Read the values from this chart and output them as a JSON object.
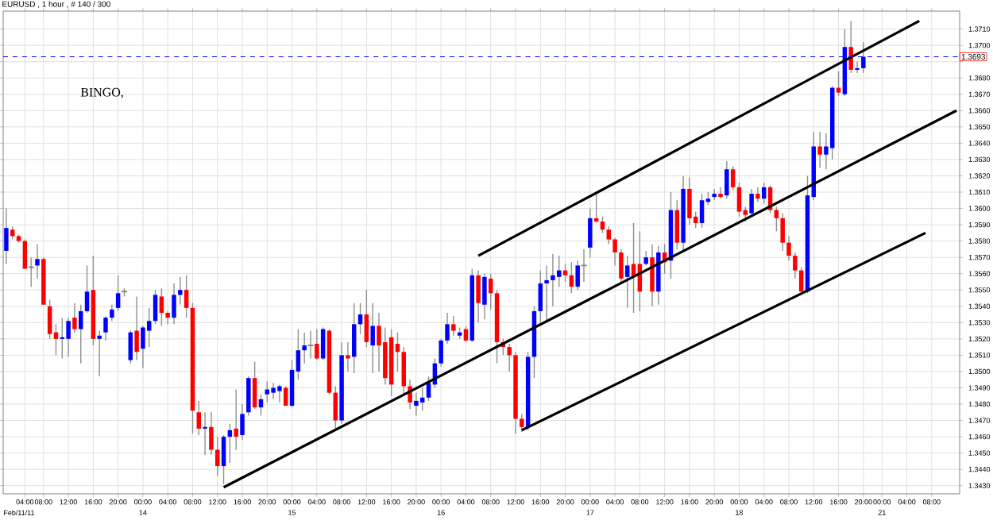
{
  "chart_data": {
    "type": "candlestick",
    "title": "EURUSD , 1 hour , # 140 / 300",
    "annotations": [
      "BINGO,",
      "Feb/11/11",
      "14",
      "15",
      "16",
      "17",
      "18",
      "21"
    ],
    "categories": [
      null,
      null,
      null,
      "04:00",
      null,
      null,
      "08:00",
      null,
      null,
      null,
      "12:00",
      null,
      null,
      null,
      "16:00",
      null,
      null,
      null,
      "20:00",
      null,
      null,
      null,
      "00:00",
      null,
      null,
      null,
      "04:00",
      null,
      null,
      null,
      "08:00",
      null,
      null,
      null,
      "12:00",
      null,
      null,
      null,
      "16:00",
      null,
      null,
      null,
      "20:00",
      null,
      null,
      null,
      "00:00",
      null,
      null,
      null,
      "04:00",
      null,
      null,
      null,
      "08:00",
      null,
      null,
      null,
      "12:00",
      null,
      null,
      null,
      "16:00",
      null,
      null,
      null,
      "20:00",
      null,
      null,
      null,
      "00:00",
      null,
      null,
      null,
      "04:00",
      null,
      null,
      null,
      "08:00",
      null,
      null,
      null,
      "12:00",
      null,
      null,
      null,
      "16:00",
      null,
      null,
      null,
      "20:00",
      null,
      null,
      null,
      "00:00",
      null,
      null,
      null,
      "04:00",
      null,
      null,
      null,
      "08:00",
      null,
      null,
      null,
      "12:00",
      null,
      null,
      null,
      "16:00",
      null,
      null,
      null,
      "20:00",
      null,
      null,
      null,
      "00:00",
      null,
      null,
      null,
      "04:00",
      null,
      null,
      null,
      "08:00",
      null,
      null,
      null,
      "12:00",
      null,
      null,
      null,
      "16:00",
      null,
      null,
      null,
      "20:00",
      null,
      null,
      "00:00",
      null,
      null,
      null,
      "04:00",
      null,
      null,
      null,
      "08:00",
      null,
      null,
      null,
      null
    ],
    "ohlc": [
      [
        1.3574,
        1.36,
        1.3566,
        1.3588
      ],
      [
        1.3587,
        1.3589,
        1.3581,
        1.3583
      ],
      [
        1.3583,
        1.3584,
        1.3579,
        1.358
      ],
      [
        1.358,
        1.3581,
        1.3563,
        1.3563
      ],
      [
        1.3564,
        1.357,
        1.3552,
        1.3564
      ],
      [
        1.3565,
        1.3578,
        1.3557,
        1.3569
      ],
      [
        1.3569,
        1.357,
        1.3541,
        1.3541
      ],
      [
        1.354,
        1.3544,
        1.352,
        1.3523
      ],
      [
        1.3524,
        1.3529,
        1.351,
        1.352
      ],
      [
        1.352,
        1.3533,
        1.3508,
        1.3521
      ],
      [
        1.352,
        1.3533,
        1.3509,
        1.3531
      ],
      [
        1.3533,
        1.3542,
        1.3524,
        1.3526
      ],
      [
        1.3526,
        1.3541,
        1.3505,
        1.3537
      ],
      [
        1.3537,
        1.3565,
        1.3536,
        1.3549
      ],
      [
        1.355,
        1.3571,
        1.3516,
        1.352
      ],
      [
        1.352,
        1.3525,
        1.3497,
        1.3522
      ],
      [
        1.3524,
        1.3534,
        1.3519,
        1.3533
      ],
      [
        1.3533,
        1.3541,
        1.3531,
        1.3538
      ],
      [
        1.3539,
        1.3559,
        1.3537,
        1.3548
      ],
      [
        1.3549,
        1.3551,
        1.3546,
        1.3549
      ],
      [
        1.3507,
        1.3525,
        1.3505,
        1.3524
      ],
      [
        1.3525,
        1.3546,
        1.3507,
        1.3512
      ],
      [
        1.3514,
        1.3528,
        1.3502,
        1.3527
      ],
      [
        1.3525,
        1.3539,
        1.3515,
        1.3531
      ],
      [
        1.3531,
        1.355,
        1.3529,
        1.3547
      ],
      [
        1.3546,
        1.3551,
        1.3528,
        1.3536
      ],
      [
        1.3536,
        1.3537,
        1.3529,
        1.3533
      ],
      [
        1.3533,
        1.3554,
        1.3529,
        1.3547
      ],
      [
        1.3547,
        1.3558,
        1.3541,
        1.355
      ],
      [
        1.355,
        1.3559,
        1.3533,
        1.3539
      ],
      [
        1.3539,
        1.3542,
        1.3462,
        1.3476
      ],
      [
        1.3475,
        1.3482,
        1.3461,
        1.3465
      ],
      [
        1.3465,
        1.3475,
        1.3449,
        1.3466
      ],
      [
        1.3466,
        1.3475,
        1.3449,
        1.3452
      ],
      [
        1.3452,
        1.346,
        1.3436,
        1.3442
      ],
      [
        1.3442,
        1.3461,
        1.3431,
        1.346
      ],
      [
        1.346,
        1.3468,
        1.3444,
        1.3464
      ],
      [
        1.3465,
        1.3489,
        1.3452,
        1.346
      ],
      [
        1.3461,
        1.348,
        1.3458,
        1.3474
      ],
      [
        1.3475,
        1.3497,
        1.3473,
        1.3496
      ],
      [
        1.3496,
        1.3506,
        1.3477,
        1.3478
      ],
      [
        1.3478,
        1.3486,
        1.3473,
        1.3483
      ],
      [
        1.3486,
        1.3494,
        1.3481,
        1.3489
      ],
      [
        1.3487,
        1.3493,
        1.3483,
        1.349
      ],
      [
        1.3488,
        1.3492,
        1.3481,
        1.3491
      ],
      [
        1.349,
        1.3491,
        1.3479,
        1.3479
      ],
      [
        1.3479,
        1.3507,
        1.3478,
        1.3501
      ],
      [
        1.35,
        1.3526,
        1.3495,
        1.3513
      ],
      [
        1.3513,
        1.3524,
        1.3505,
        1.3516
      ],
      [
        1.3516,
        1.3525,
        1.3508,
        1.3516
      ],
      [
        1.3517,
        1.3526,
        1.3507,
        1.3508
      ],
      [
        1.3508,
        1.3527,
        1.3507,
        1.3526
      ],
      [
        1.3525,
        1.3526,
        1.3486,
        1.3487
      ],
      [
        1.3487,
        1.3491,
        1.3465,
        1.347
      ],
      [
        1.347,
        1.3518,
        1.3468,
        1.351
      ],
      [
        1.351,
        1.3518,
        1.35,
        1.3508
      ],
      [
        1.3509,
        1.3542,
        1.3499,
        1.3529
      ],
      [
        1.3529,
        1.3542,
        1.3523,
        1.3535
      ],
      [
        1.3535,
        1.355,
        1.3515,
        1.3518
      ],
      [
        1.3516,
        1.3542,
        1.3499,
        1.3528
      ],
      [
        1.3528,
        1.3536,
        1.35,
        1.3516
      ],
      [
        1.3518,
        1.3527,
        1.3492,
        1.3496
      ],
      [
        1.3521,
        1.3526,
        1.3485,
        1.3492
      ],
      [
        1.3517,
        1.3524,
        1.35,
        1.3512
      ],
      [
        1.3512,
        1.3515,
        1.3486,
        1.3491
      ],
      [
        1.3491,
        1.3495,
        1.3477,
        1.3481
      ],
      [
        1.3479,
        1.3487,
        1.3473,
        1.3482
      ],
      [
        1.3481,
        1.349,
        1.3476,
        1.3484
      ],
      [
        1.3484,
        1.3497,
        1.3482,
        1.3493
      ],
      [
        1.3492,
        1.3508,
        1.349,
        1.3505
      ],
      [
        1.3505,
        1.352,
        1.3503,
        1.3519
      ],
      [
        1.3519,
        1.3536,
        1.3517,
        1.3529
      ],
      [
        1.3529,
        1.3534,
        1.3522,
        1.3525
      ],
      [
        1.3522,
        1.3527,
        1.352,
        1.3524
      ],
      [
        1.3526,
        1.3528,
        1.3518,
        1.3519
      ],
      [
        1.3519,
        1.3563,
        1.3518,
        1.3559
      ],
      [
        1.3559,
        1.3562,
        1.353,
        1.3542
      ],
      [
        1.3541,
        1.356,
        1.3532,
        1.3558
      ],
      [
        1.3557,
        1.356,
        1.3538,
        1.3548
      ],
      [
        1.3548,
        1.355,
        1.3505,
        1.3518
      ],
      [
        1.3518,
        1.352,
        1.351,
        1.3515
      ],
      [
        1.3515,
        1.3517,
        1.35,
        1.351
      ],
      [
        1.351,
        1.3512,
        1.3462,
        1.3471
      ],
      [
        1.3471,
        1.3474,
        1.3463,
        1.3466
      ],
      [
        1.3466,
        1.3512,
        1.3464,
        1.3509
      ],
      [
        1.3509,
        1.354,
        1.3496,
        1.3537
      ],
      [
        1.3537,
        1.3562,
        1.353,
        1.3554
      ],
      [
        1.3554,
        1.3565,
        1.353,
        1.3556
      ],
      [
        1.3556,
        1.3572,
        1.354,
        1.3559
      ],
      [
        1.3558,
        1.3571,
        1.3552,
        1.3562
      ],
      [
        1.3562,
        1.3566,
        1.3555,
        1.3559
      ],
      [
        1.3559,
        1.3567,
        1.3548,
        1.3552
      ],
      [
        1.3552,
        1.3568,
        1.355,
        1.3565
      ],
      [
        1.3565,
        1.3575,
        1.3555,
        1.3565
      ],
      [
        1.3576,
        1.36,
        1.357,
        1.3594
      ],
      [
        1.3594,
        1.361,
        1.3591,
        1.3592
      ],
      [
        1.3592,
        1.3595,
        1.3585,
        1.3587
      ],
      [
        1.3587,
        1.3589,
        1.3578,
        1.3581
      ],
      [
        1.3581,
        1.3582,
        1.3565,
        1.3573
      ],
      [
        1.3573,
        1.3575,
        1.3554,
        1.3557
      ],
      [
        1.3558,
        1.3571,
        1.3539,
        1.3565
      ],
      [
        1.3566,
        1.3591,
        1.3536,
        1.3558
      ],
      [
        1.3566,
        1.3586,
        1.3537,
        1.3549
      ],
      [
        1.3566,
        1.3574,
        1.3565,
        1.357
      ],
      [
        1.357,
        1.3578,
        1.354,
        1.3549
      ],
      [
        1.3549,
        1.3577,
        1.3541,
        1.3573
      ],
      [
        1.3573,
        1.3578,
        1.356,
        1.3567
      ],
      [
        1.3568,
        1.361,
        1.3557,
        1.3599
      ],
      [
        1.3599,
        1.3605,
        1.3575,
        1.3579
      ],
      [
        1.3579,
        1.362,
        1.3573,
        1.3612
      ],
      [
        1.3612,
        1.3619,
        1.359,
        1.3594
      ],
      [
        1.3595,
        1.3598,
        1.3588,
        1.3591
      ],
      [
        1.3591,
        1.3609,
        1.3588,
        1.3605
      ],
      [
        1.3604,
        1.361,
        1.3602,
        1.3606
      ],
      [
        1.3607,
        1.3612,
        1.3605,
        1.3609
      ],
      [
        1.3609,
        1.3613,
        1.3606,
        1.3607
      ],
      [
        1.3608,
        1.3629,
        1.3606,
        1.3624
      ],
      [
        1.3624,
        1.3626,
        1.3611,
        1.3613
      ],
      [
        1.3613,
        1.3616,
        1.3595,
        1.3598
      ],
      [
        1.3599,
        1.3601,
        1.3592,
        1.3596
      ],
      [
        1.3597,
        1.3612,
        1.3595,
        1.3609
      ],
      [
        1.3609,
        1.3613,
        1.3604,
        1.3606
      ],
      [
        1.3606,
        1.3616,
        1.3603,
        1.3613
      ],
      [
        1.3613,
        1.3614,
        1.3597,
        1.3599
      ],
      [
        1.3599,
        1.3601,
        1.3586,
        1.3594
      ],
      [
        1.3594,
        1.3597,
        1.3574,
        1.3579
      ],
      [
        1.3579,
        1.3583,
        1.3568,
        1.3571
      ],
      [
        1.3571,
        1.3573,
        1.3557,
        1.3562
      ],
      [
        1.3562,
        1.3564,
        1.3548,
        1.3549
      ],
      [
        1.3549,
        1.362,
        1.3548,
        1.3608
      ],
      [
        1.3607,
        1.3647,
        1.3605,
        1.3638
      ],
      [
        1.3638,
        1.3647,
        1.3625,
        1.3633
      ],
      [
        1.3633,
        1.3646,
        1.3624,
        1.3638
      ],
      [
        1.3637,
        1.3675,
        1.363,
        1.3674
      ],
      [
        1.3674,
        1.3684,
        1.3669,
        1.3671
      ],
      [
        1.367,
        1.371,
        1.3669,
        1.3699
      ],
      [
        1.3699,
        1.3715,
        1.3683,
        1.3685
      ],
      [
        1.3685,
        1.369,
        1.3683,
        1.3686
      ],
      [
        1.3686,
        1.3702,
        1.3683,
        1.3693
      ],
      null,
      null,
      null,
      null,
      null,
      null,
      null,
      null,
      null,
      null,
      null,
      null,
      null,
      null,
      null
    ],
    "colors": [
      "#0000ff",
      "#ff0000",
      "#ff0000",
      "#ff0000",
      "#808080",
      "#0000ff",
      "#ff0000",
      "#ff0000",
      "#ff0000",
      "#0000ff",
      "#0000ff",
      "#ff0000",
      "#0000ff",
      "#0000ff",
      "#ff0000",
      "#0000ff",
      "#0000ff",
      "#0000ff",
      "#0000ff",
      "#808080",
      "#0000ff",
      "#ff0000",
      "#0000ff",
      "#0000ff",
      "#0000ff",
      "#ff0000",
      "#ff0000",
      "#0000ff",
      "#0000ff",
      "#ff0000",
      "#ff0000",
      "#ff0000",
      "#0000ff",
      "#ff0000",
      "#ff0000",
      "#0000ff",
      "#0000ff",
      "#ff0000",
      "#0000ff",
      "#0000ff",
      "#ff0000",
      "#0000ff",
      "#0000ff",
      "#0000ff",
      "#0000ff",
      "#ff0000",
      "#0000ff",
      "#0000ff",
      "#0000ff",
      "#808080",
      "#ff0000",
      "#0000ff",
      "#ff0000",
      "#ff0000",
      "#0000ff",
      "#ff0000",
      "#0000ff",
      "#0000ff",
      "#ff0000",
      "#0000ff",
      "#ff0000",
      "#ff0000",
      "#ff0000",
      "#ff0000",
      "#ff0000",
      "#ff0000",
      "#0000ff",
      "#0000ff",
      "#0000ff",
      "#0000ff",
      "#0000ff",
      "#0000ff",
      "#ff0000",
      "#0000ff",
      "#ff0000",
      "#0000ff",
      "#ff0000",
      "#0000ff",
      "#ff0000",
      "#ff0000",
      "#ff0000",
      "#ff0000",
      "#ff0000",
      "#ff0000",
      "#0000ff",
      "#0000ff",
      "#0000ff",
      "#0000ff",
      "#0000ff",
      "#0000ff",
      "#ff0000",
      "#ff0000",
      "#0000ff",
      "#808080",
      "#0000ff",
      "#ff0000",
      "#ff0000",
      "#ff0000",
      "#ff0000",
      "#ff0000",
      "#0000ff",
      "#ff0000",
      "#ff0000",
      "#0000ff",
      "#ff0000",
      "#0000ff",
      "#ff0000",
      "#0000ff",
      "#ff0000",
      "#0000ff",
      "#ff0000",
      "#ff0000",
      "#0000ff",
      "#0000ff",
      "#0000ff",
      "#ff0000",
      "#0000ff",
      "#ff0000",
      "#ff0000",
      "#ff0000",
      "#0000ff",
      "#ff0000",
      "#0000ff",
      "#ff0000",
      "#ff0000",
      "#ff0000",
      "#ff0000",
      "#ff0000",
      "#ff0000",
      "#0000ff",
      "#0000ff",
      "#ff0000",
      "#0000ff",
      "#0000ff",
      "#ff0000",
      "#0000ff",
      "#ff0000",
      "#0000ff",
      "#0000ff",
      null,
      null,
      null,
      null,
      null,
      null,
      null,
      null,
      null,
      null,
      null,
      null,
      null,
      null,
      null
    ],
    "series": [
      {
        "type": "line",
        "color": "#000000",
        "values": [
          null,
          null,
          null,
          null,
          null,
          null,
          null,
          null,
          null,
          null,
          null,
          null,
          null,
          null,
          null,
          null,
          null,
          null,
          null,
          null,
          null,
          null,
          null,
          null,
          null,
          null,
          null,
          null,
          null,
          null,
          null,
          null,
          null,
          null,
          null,
          null,
          null,
          null,
          null,
          null,
          null,
          null,
          null,
          null,
          null,
          null,
          null,
          null,
          null,
          null,
          null,
          null,
          null,
          null,
          null,
          null,
          null,
          null,
          null,
          null,
          null,
          null,
          null,
          null,
          null,
          null,
          null,
          null,
          null,
          null,
          null,
          null,
          null,
          null,
          null,
          null,
          1.3571,
          null,
          null,
          null,
          null,
          null,
          null,
          null,
          null,
          null,
          null,
          null,
          null,
          null,
          null,
          null,
          null,
          null,
          null,
          null,
          null,
          null,
          null,
          null,
          null,
          null,
          null,
          null,
          null,
          null,
          null,
          null,
          null,
          null,
          null,
          null,
          null,
          null,
          null,
          null,
          null,
          null,
          null,
          null,
          null,
          null,
          null,
          null,
          null,
          null,
          null,
          null,
          null,
          null,
          null,
          null,
          null,
          null,
          null,
          null,
          null,
          null,
          null,
          null,
          null,
          null,
          null,
          null,
          null,
          null,
          null,
          1.3715,
          null,
          null,
          null,
          null,
          null,
          null
        ]
      },
      {
        "type": "line",
        "color": "#000000",
        "values": [
          null,
          null,
          null,
          null,
          null,
          null,
          null,
          null,
          null,
          null,
          null,
          null,
          null,
          null,
          null,
          null,
          null,
          null,
          null,
          null,
          null,
          null,
          null,
          null,
          null,
          null,
          null,
          null,
          null,
          null,
          null,
          null,
          null,
          null,
          null,
          1.3429,
          null,
          null,
          null,
          null,
          null,
          null,
          null,
          null,
          null,
          null,
          null,
          null,
          null,
          null,
          null,
          null,
          null,
          null,
          null,
          null,
          null,
          null,
          null,
          null,
          null,
          null,
          null,
          null,
          null,
          null,
          null,
          null,
          null,
          null,
          null,
          null,
          null,
          null,
          null,
          null,
          null,
          null,
          null,
          null,
          null,
          null,
          null,
          null,
          null,
          null,
          null,
          null,
          null,
          null,
          null,
          null,
          null,
          null,
          null,
          null,
          null,
          null,
          null,
          null,
          null,
          null,
          null,
          null,
          null,
          null,
          null,
          null,
          null,
          null,
          null,
          null,
          null,
          null,
          null,
          null,
          null,
          null,
          null,
          null,
          null,
          null,
          null,
          null,
          null,
          null,
          null,
          null,
          null,
          null,
          null,
          null,
          null,
          null,
          null,
          null,
          null,
          null,
          null,
          null,
          null,
          null,
          null,
          null,
          null,
          null,
          null,
          null,
          null,
          null,
          null,
          null,
          null,
          1.366
        ]
      },
      {
        "type": "line",
        "color": "#000000",
        "values": [
          null,
          null,
          null,
          null,
          null,
          null,
          null,
          null,
          null,
          null,
          null,
          null,
          null,
          null,
          null,
          null,
          null,
          null,
          null,
          null,
          null,
          null,
          null,
          null,
          null,
          null,
          null,
          null,
          null,
          null,
          null,
          null,
          null,
          null,
          null,
          null,
          null,
          null,
          null,
          null,
          null,
          null,
          null,
          null,
          null,
          null,
          null,
          null,
          null,
          null,
          null,
          null,
          null,
          null,
          null,
          null,
          null,
          null,
          null,
          null,
          null,
          null,
          null,
          null,
          null,
          null,
          null,
          null,
          null,
          null,
          null,
          null,
          null,
          null,
          null,
          null,
          null,
          null,
          null,
          null,
          null,
          null,
          null,
          1.3464,
          null,
          null,
          null,
          null,
          null,
          null,
          null,
          null,
          null,
          null,
          null,
          null,
          null,
          null,
          null,
          null,
          null,
          null,
          null,
          null,
          null,
          null,
          null,
          null,
          null,
          null,
          null,
          null,
          null,
          null,
          null,
          null,
          null,
          null,
          null,
          null,
          null,
          null,
          null,
          null,
          null,
          null,
          null,
          null,
          null,
          null,
          null,
          null,
          null,
          null,
          null,
          null,
          null,
          null,
          null,
          null,
          null,
          null,
          null,
          null,
          null,
          null,
          null,
          null,
          1.3585,
          null,
          null,
          null,
          null,
          null
        ]
      }
    ],
    "ref_lines": [
      {
        "axis": "y",
        "value": 1.3693,
        "label": "1.3693",
        "color": "#0000ff",
        "line_style": "dashed"
      }
    ],
    "ylim": [
      1.3425,
      1.3721
    ],
    "yticks": [
      {
        "value": 1.343,
        "label": "1.3430"
      },
      {
        "value": 1.344,
        "label": "1.3440"
      },
      {
        "value": 1.345,
        "label": "1.3450"
      },
      {
        "value": 1.346,
        "label": "1.3460"
      },
      {
        "value": 1.347,
        "label": "1.3470"
      },
      {
        "value": 1.348,
        "label": "1.3480"
      },
      {
        "value": 1.349,
        "label": "1.3490"
      },
      {
        "value": 1.35,
        "label": "1.3500"
      },
      {
        "value": 1.351,
        "label": "1.3510"
      },
      {
        "value": 1.352,
        "label": "1.3520"
      },
      {
        "value": 1.353,
        "label": "1.3530"
      },
      {
        "value": 1.354,
        "label": "1.3540"
      },
      {
        "value": 1.355,
        "label": "1.3550"
      },
      {
        "value": 1.356,
        "label": "1.3560"
      },
      {
        "value": 1.357,
        "label": "1.3570"
      },
      {
        "value": 1.358,
        "label": "1.3580"
      },
      {
        "value": 1.359,
        "label": "1.3590"
      },
      {
        "value": 1.36,
        "label": "1.3600"
      },
      {
        "value": 1.361,
        "label": "1.3610"
      },
      {
        "value": 1.362,
        "label": "1.3620"
      },
      {
        "value": 1.363,
        "label": "1.3630"
      },
      {
        "value": 1.364,
        "label": "1.3640"
      },
      {
        "value": 1.365,
        "label": "1.3650"
      },
      {
        "value": 1.366,
        "label": "1.3660"
      },
      {
        "value": 1.367,
        "label": "1.3670"
      },
      {
        "value": 1.368,
        "label": "1.3680"
      },
      {
        "value": 1.369,
        "label": null
      },
      {
        "value": 1.37,
        "label": "1.3700"
      },
      {
        "value": 1.371,
        "label": "1.3710"
      }
    ],
    "grid": true
  }
}
